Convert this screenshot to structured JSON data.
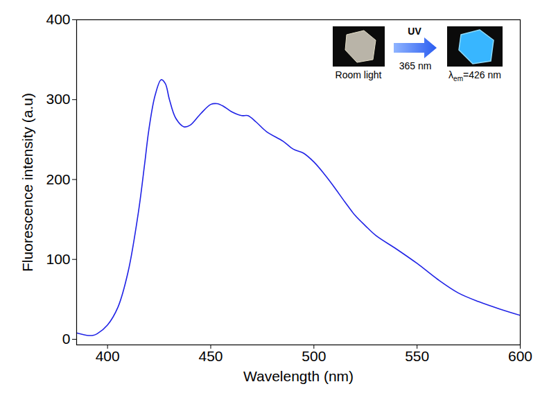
{
  "chart_data": {
    "type": "line",
    "x_label": "Wavelength (nm)",
    "y_label": "Fluorescence intensity (a.u)",
    "xlim": [
      385,
      600
    ],
    "xticks": [
      400,
      450,
      500,
      550,
      600
    ],
    "ylim": [
      -7,
      400
    ],
    "yticks": [
      0,
      100,
      200,
      300,
      400
    ],
    "grid": false,
    "color": "#1f22e6",
    "x": [
      385,
      390,
      393,
      395,
      400,
      405,
      410,
      415,
      418,
      420,
      423,
      426,
      428,
      430,
      433,
      437,
      440,
      445,
      450,
      453,
      456,
      460,
      465,
      468,
      472,
      477,
      485,
      490,
      495,
      500,
      505,
      510,
      515,
      520,
      525,
      530,
      540,
      550,
      560,
      570,
      580,
      590,
      600
    ],
    "values": [
      8,
      5,
      5,
      7,
      18,
      40,
      85,
      160,
      220,
      262,
      305,
      325,
      320,
      300,
      277,
      266,
      268,
      282,
      294,
      295,
      292,
      285,
      280,
      280,
      272,
      260,
      248,
      238,
      233,
      222,
      207,
      190,
      172,
      155,
      142,
      130,
      113,
      95,
      75,
      58,
      47,
      38,
      30
    ],
    "annotations": [
      {
        "text": "UV"
      },
      {
        "text": "365 nm"
      },
      {
        "text": "Room light"
      },
      {
        "label": "λ",
        "subscript": "em",
        "text": "=426 nm"
      }
    ]
  }
}
